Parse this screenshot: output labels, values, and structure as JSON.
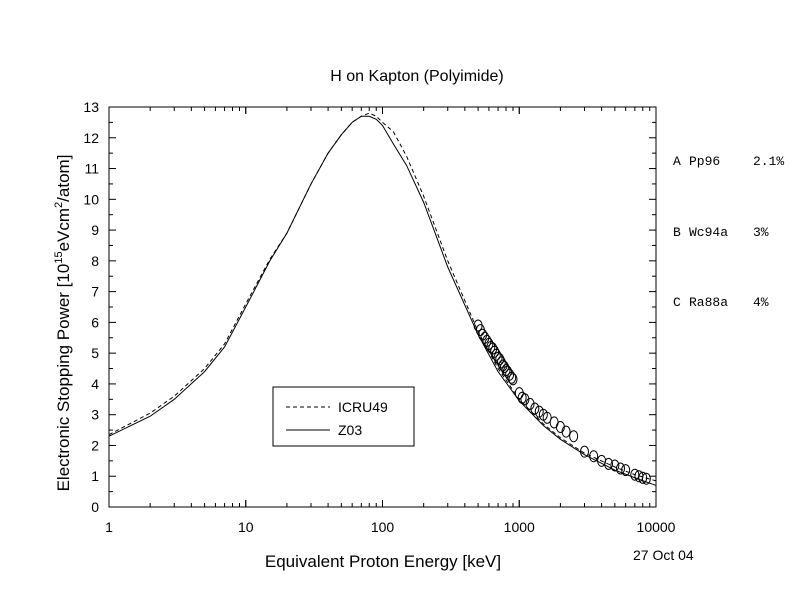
{
  "chart_data": {
    "type": "line",
    "title": "H on Kapton (Polyimide)",
    "xlabel": "Equivalent Proton Energy [keV]",
    "ylabel": {
      "pre": "Electronic Stopping Power [10",
      "sup1": "15",
      "mid": "eVcm",
      "sup2": "2",
      "post": "/atom]"
    },
    "xscale": "log",
    "xlim": [
      1,
      10000
    ],
    "ylim": [
      0,
      13
    ],
    "x_ticks": [
      "1",
      "10",
      "100",
      "1000",
      "10000"
    ],
    "y_ticks": [
      "0",
      "1",
      "2",
      "3",
      "4",
      "5",
      "6",
      "7",
      "8",
      "9",
      "10",
      "11",
      "12",
      "13"
    ],
    "legend": {
      "placement": "lower-left-center",
      "entries": [
        {
          "label": "ICRU49",
          "style": "dashed"
        },
        {
          "label": "Z03",
          "style": "solid"
        }
      ]
    },
    "series": [
      {
        "name": "ICRU49",
        "style": "dashed",
        "x": [
          1,
          2,
          3,
          5,
          7,
          10,
          15,
          20,
          30,
          40,
          50,
          60,
          70,
          80,
          90,
          100,
          120,
          150,
          200,
          300,
          500,
          700,
          1000,
          1500,
          2000,
          3000,
          5000,
          7000,
          10000
        ],
        "y": [
          2.35,
          3.05,
          3.6,
          4.5,
          5.3,
          6.6,
          8.05,
          8.9,
          10.5,
          11.5,
          12.1,
          12.5,
          12.7,
          12.8,
          12.7,
          12.5,
          12.2,
          11.4,
          10.1,
          8.0,
          5.7,
          4.5,
          3.5,
          2.7,
          2.25,
          1.75,
          1.3,
          1.05,
          0.85
        ]
      },
      {
        "name": "Z03",
        "style": "solid",
        "x": [
          1,
          2,
          3,
          5,
          7,
          10,
          15,
          20,
          30,
          40,
          50,
          60,
          70,
          80,
          90,
          100,
          120,
          150,
          200,
          300,
          500,
          700,
          1000,
          1500,
          2000,
          3000,
          5000,
          7000,
          10000
        ],
        "y": [
          2.3,
          2.95,
          3.5,
          4.4,
          5.2,
          6.5,
          8.0,
          8.9,
          10.5,
          11.5,
          12.1,
          12.5,
          12.7,
          12.7,
          12.6,
          12.4,
          11.8,
          11.1,
          9.9,
          7.8,
          5.6,
          4.4,
          3.45,
          2.65,
          2.2,
          1.7,
          1.2,
          0.95,
          0.7
        ]
      },
      {
        "name": "A Pp96",
        "style": "markers",
        "x": [
          500,
          520,
          540,
          560,
          580,
          600,
          620,
          640,
          660,
          680,
          700,
          720,
          740,
          760,
          780,
          800,
          820,
          850,
          880,
          900
        ],
        "y": [
          5.9,
          5.75,
          5.6,
          5.5,
          5.4,
          5.3,
          5.2,
          5.15,
          5.05,
          4.95,
          4.85,
          4.8,
          4.7,
          4.6,
          4.55,
          4.45,
          4.4,
          4.3,
          4.2,
          4.15
        ]
      },
      {
        "name": "B Wc94a",
        "style": "markers",
        "x": [
          1000,
          1050,
          1100,
          1200,
          1300,
          1400,
          1500,
          1600,
          1800,
          2000,
          2200,
          2500
        ],
        "y": [
          3.7,
          3.55,
          3.5,
          3.35,
          3.2,
          3.1,
          3.0,
          2.9,
          2.75,
          2.6,
          2.45,
          2.3
        ]
      },
      {
        "name": "C Ra88a",
        "style": "markers",
        "x": [
          3000,
          3500,
          4000,
          4500,
          5000,
          5500,
          6000,
          7000,
          7500,
          8000,
          8500
        ],
        "y": [
          1.8,
          1.65,
          1.5,
          1.4,
          1.35,
          1.25,
          1.2,
          1.05,
          1.0,
          0.95,
          0.92
        ]
      }
    ]
  },
  "references": [
    {
      "letter": "A",
      "name": "Pp96",
      "error": "2.1%"
    },
    {
      "letter": "B",
      "name": "Wc94a",
      "error": "3%"
    },
    {
      "letter": "C",
      "name": "Ra88a",
      "error": "4%"
    }
  ],
  "date_stamp": "27 Oct 04"
}
